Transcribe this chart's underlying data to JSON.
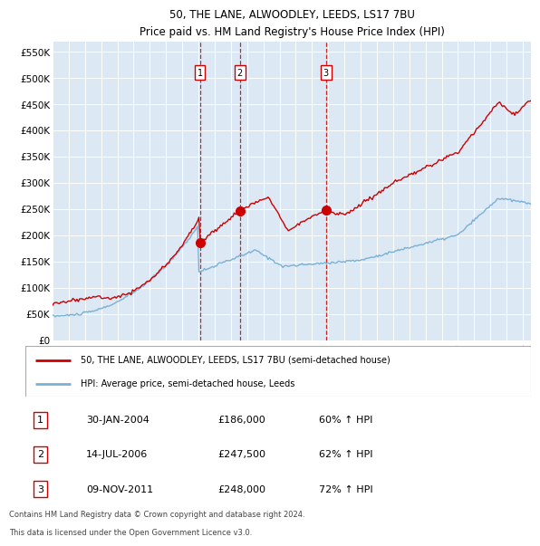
{
  "title": "50, THE LANE, ALWOODLEY, LEEDS, LS17 7BU",
  "subtitle": "Price paid vs. HM Land Registry's House Price Index (HPI)",
  "plot_bg_color": "#dce9f5",
  "hpi_line_color": "#7ab0d4",
  "price_line_color": "#cc0000",
  "sale_marker_color": "#cc0000",
  "vline_color": "#cc0000",
  "ylim": [
    0,
    570000
  ],
  "yticks": [
    0,
    50000,
    100000,
    150000,
    200000,
    250000,
    300000,
    350000,
    400000,
    450000,
    500000,
    550000
  ],
  "ytick_labels": [
    "£0",
    "£50K",
    "£100K",
    "£150K",
    "£200K",
    "£250K",
    "£300K",
    "£350K",
    "£400K",
    "£450K",
    "£500K",
    "£550K"
  ],
  "sales": [
    {
      "label": 1,
      "date_num": 2004.08,
      "price": 186000,
      "date_str": "30-JAN-2004",
      "pct": "60%",
      "dir": "↑"
    },
    {
      "label": 2,
      "date_num": 2006.54,
      "price": 247500,
      "date_str": "14-JUL-2006",
      "pct": "62%",
      "dir": "↑"
    },
    {
      "label": 3,
      "date_num": 2011.85,
      "price": 248000,
      "date_str": "09-NOV-2011",
      "pct": "72%",
      "dir": "↑"
    }
  ],
  "legend1_label": "50, THE LANE, ALWOODLEY, LEEDS, LS17 7BU (semi-detached house)",
  "legend2_label": "HPI: Average price, semi-detached house, Leeds",
  "footer1": "Contains HM Land Registry data © Crown copyright and database right 2024.",
  "footer2": "This data is licensed under the Open Government Licence v3.0.",
  "xmin": 1995.0,
  "xmax": 2024.5
}
